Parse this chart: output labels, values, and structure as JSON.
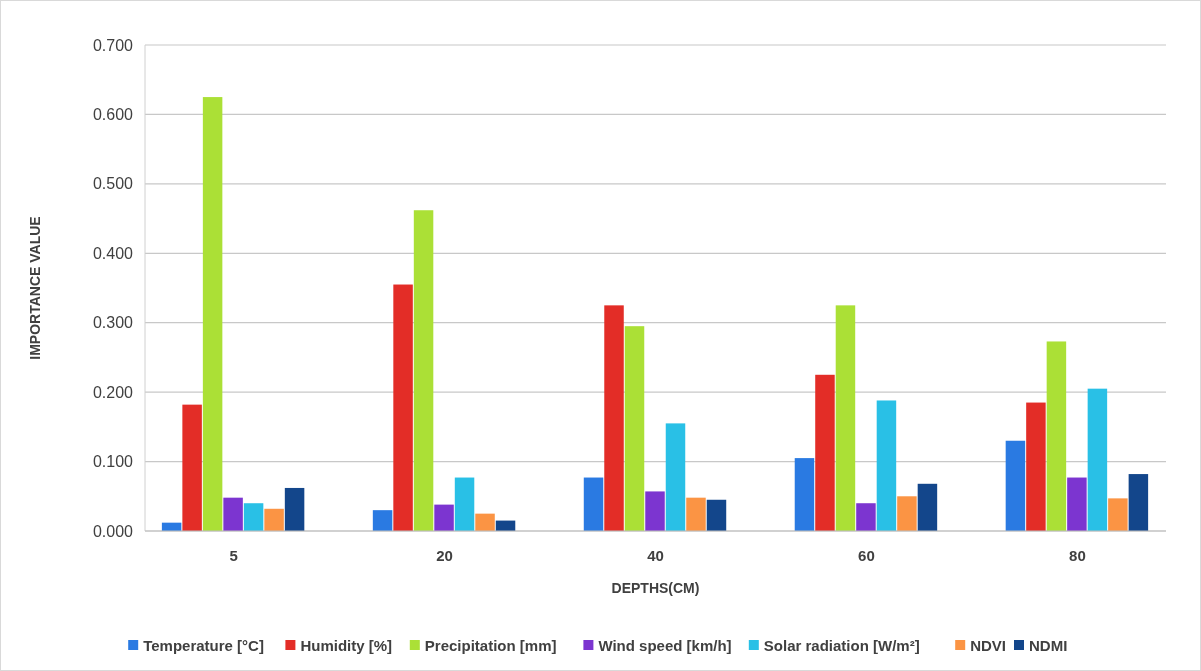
{
  "chart_data": {
    "type": "bar",
    "xlabel": "DEPTHS(CM)",
    "ylabel": "IMPORTANCE VALUE",
    "categories": [
      "5",
      "20",
      "40",
      "60",
      "80"
    ],
    "series": [
      {
        "name": "Temperature [°C]",
        "color": "#2a7ae2",
        "values": [
          0.012,
          0.03,
          0.077,
          0.105,
          0.13
        ]
      },
      {
        "name": "Humidity [%]",
        "color": "#e32d27",
        "values": [
          0.182,
          0.355,
          0.325,
          0.225,
          0.185
        ]
      },
      {
        "name": "Precipitation [mm]",
        "color": "#abe036",
        "values": [
          0.625,
          0.462,
          0.295,
          0.325,
          0.273
        ]
      },
      {
        "name": "Wind speed [km/h]",
        "color": "#7c35d0",
        "values": [
          0.048,
          0.038,
          0.057,
          0.04,
          0.077
        ]
      },
      {
        "name": "Solar radiation [W/m²]",
        "color": "#29c0e6",
        "values": [
          0.04,
          0.077,
          0.155,
          0.188,
          0.205
        ]
      },
      {
        "name": "NDVI",
        "color": "#fb9444",
        "values": [
          0.032,
          0.025,
          0.048,
          0.05,
          0.047
        ]
      },
      {
        "name": "NDMI",
        "color": "#13468b",
        "values": [
          0.062,
          0.015,
          0.045,
          0.068,
          0.082
        ]
      }
    ],
    "ylim": [
      0,
      0.7
    ],
    "yticks": [
      {
        "value": 0,
        "label": "0.000"
      },
      {
        "value": 0.1,
        "label": "0.100"
      },
      {
        "value": 0.2,
        "label": "0.200"
      },
      {
        "value": 0.3,
        "label": "0.300"
      },
      {
        "value": 0.4,
        "label": "0.400"
      },
      {
        "value": 0.5,
        "label": "0.500"
      },
      {
        "value": 0.6,
        "label": "0.600"
      },
      {
        "value": 0.7,
        "label": "0.700"
      }
    ],
    "grid": "y",
    "legend": "bottom"
  }
}
